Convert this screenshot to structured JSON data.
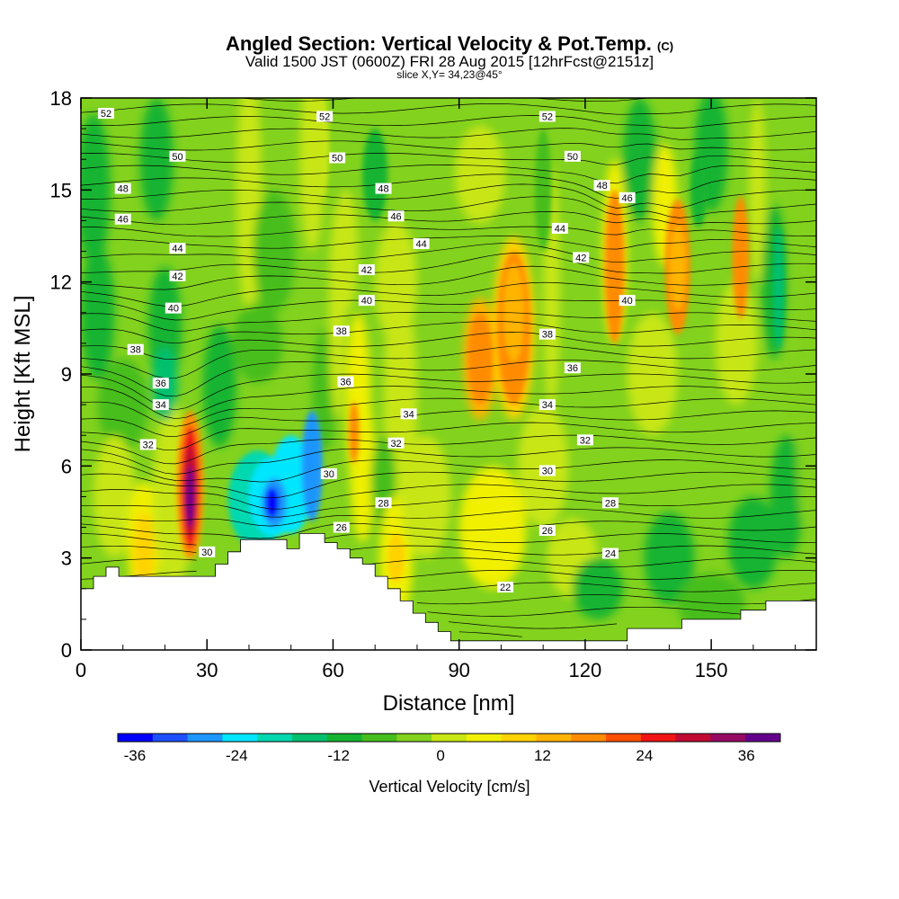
{
  "header": {
    "title_main": "Angled Section: Vertical Velocity & Pot.Temp.",
    "title_mark": "(C)",
    "line2": "Valid 1500 JST (0600Z) FRI 28 Aug 2015 [12hrFcst@2151z]",
    "line3": "slice X,Y= 34,23@45°"
  },
  "chart_data": {
    "type": "heatmap",
    "xlabel": "Distance [nm]",
    "ylabel": "Height [Kft MSL]",
    "xlim": [
      0,
      175
    ],
    "ylim": [
      0,
      18
    ],
    "x_ticks": [
      0,
      30,
      60,
      90,
      120,
      150
    ],
    "y_ticks": [
      0,
      3,
      6,
      9,
      12,
      15,
      18
    ],
    "colorbar": {
      "label": "Vertical Velocity [cm/s]",
      "ticks": [
        -36,
        -24,
        -12,
        0,
        12,
        24,
        36
      ],
      "colors": [
        "#0000ff",
        "#1e50ff",
        "#1e96ff",
        "#00e6ff",
        "#00d8b0",
        "#00c070",
        "#14b432",
        "#46be1e",
        "#82d21e",
        "#c8e614",
        "#f0f000",
        "#ffd200",
        "#ffb400",
        "#ff8c00",
        "#ff5000",
        "#f01414",
        "#c00a32",
        "#960a64",
        "#64008c"
      ]
    },
    "theta_contours": {
      "units": "deg C",
      "labels": [
        {
          "v": "52",
          "x": 6,
          "y": 17.5
        },
        {
          "v": "52",
          "x": 58,
          "y": 17.4
        },
        {
          "v": "52",
          "x": 111,
          "y": 17.4
        },
        {
          "v": "50",
          "x": 23,
          "y": 16.1
        },
        {
          "v": "50",
          "x": 61,
          "y": 16.05
        },
        {
          "v": "50",
          "x": 117,
          "y": 16.1
        },
        {
          "v": "48",
          "x": 10,
          "y": 15.05
        },
        {
          "v": "48",
          "x": 72,
          "y": 15.05
        },
        {
          "v": "48",
          "x": 124,
          "y": 15.15
        },
        {
          "v": "46",
          "x": 10,
          "y": 14.05
        },
        {
          "v": "46",
          "x": 75,
          "y": 14.15
        },
        {
          "v": "46",
          "x": 130,
          "y": 14.75
        },
        {
          "v": "44",
          "x": 23,
          "y": 13.1
        },
        {
          "v": "44",
          "x": 81,
          "y": 13.25
        },
        {
          "v": "44",
          "x": 114,
          "y": 13.75
        },
        {
          "v": "42",
          "x": 23,
          "y": 12.2
        },
        {
          "v": "42",
          "x": 68,
          "y": 12.4
        },
        {
          "v": "42",
          "x": 119,
          "y": 12.8
        },
        {
          "v": "40",
          "x": 22,
          "y": 11.15
        },
        {
          "v": "40",
          "x": 68,
          "y": 11.4
        },
        {
          "v": "40",
          "x": 130,
          "y": 11.4
        },
        {
          "v": "38",
          "x": 13,
          "y": 9.8
        },
        {
          "v": "38",
          "x": 62,
          "y": 10.4
        },
        {
          "v": "38",
          "x": 111,
          "y": 10.3
        },
        {
          "v": "36",
          "x": 19,
          "y": 8.7
        },
        {
          "v": "36",
          "x": 63,
          "y": 8.75
        },
        {
          "v": "36",
          "x": 117,
          "y": 9.2
        },
        {
          "v": "34",
          "x": 19,
          "y": 8.0
        },
        {
          "v": "34",
          "x": 78,
          "y": 7.7
        },
        {
          "v": "34",
          "x": 111,
          "y": 8.0
        },
        {
          "v": "32",
          "x": 16,
          "y": 6.7
        },
        {
          "v": "32",
          "x": 75,
          "y": 6.75
        },
        {
          "v": "32",
          "x": 120,
          "y": 6.85
        },
        {
          "v": "30",
          "x": 59,
          "y": 5.75
        },
        {
          "v": "30",
          "x": 111,
          "y": 5.85
        },
        {
          "v": "30",
          "x": 30,
          "y": 3.2
        },
        {
          "v": "28",
          "x": 72,
          "y": 4.8
        },
        {
          "v": "28",
          "x": 126,
          "y": 4.8
        },
        {
          "v": "26",
          "x": 62,
          "y": 4.0
        },
        {
          "v": "26",
          "x": 111,
          "y": 3.9
        },
        {
          "v": "24",
          "x": 126,
          "y": 3.15
        },
        {
          "v": "22",
          "x": 101,
          "y": 2.05
        }
      ]
    }
  }
}
